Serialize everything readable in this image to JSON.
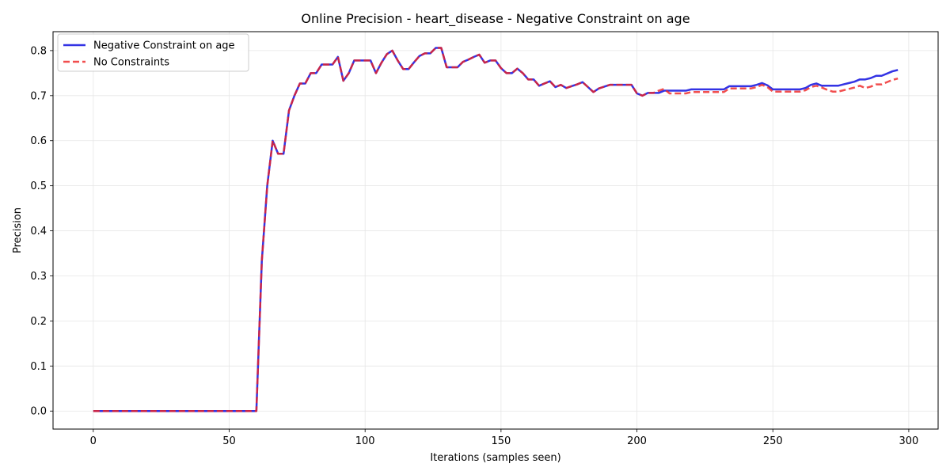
{
  "chart_data": {
    "type": "line",
    "title": "Online Precision - heart_disease - Negative Constraint on age",
    "xlabel": "Iterations (samples seen)",
    "ylabel": "Precision",
    "xlim": [
      -14.8,
      310.8
    ],
    "ylim": [
      -0.04,
      0.842
    ],
    "xticks": [
      0,
      50,
      100,
      150,
      200,
      250,
      300
    ],
    "yticks": [
      0.0,
      0.1,
      0.2,
      0.3,
      0.4,
      0.5,
      0.6,
      0.7,
      0.8
    ],
    "grid": true,
    "legend_position": "top-left",
    "series": [
      {
        "name": "Negative Constraint on age",
        "color": "#0000dd",
        "style": "solid",
        "points": [
          [
            0,
            0
          ],
          [
            60,
            0
          ],
          [
            62,
            0.333
          ],
          [
            64,
            0.5
          ],
          [
            66,
            0.6
          ],
          [
            68,
            0.571
          ],
          [
            70,
            0.571
          ],
          [
            72,
            0.667
          ],
          [
            74,
            0.7
          ],
          [
            76,
            0.727
          ],
          [
            78,
            0.727
          ],
          [
            80,
            0.75
          ],
          [
            82,
            0.75
          ],
          [
            84,
            0.769
          ],
          [
            86,
            0.769
          ],
          [
            88,
            0.769
          ],
          [
            90,
            0.786
          ],
          [
            92,
            0.733
          ],
          [
            94,
            0.75
          ],
          [
            96,
            0.778
          ],
          [
            98,
            0.778
          ],
          [
            100,
            0.778
          ],
          [
            102,
            0.778
          ],
          [
            104,
            0.75
          ],
          [
            106,
            0.773
          ],
          [
            108,
            0.792
          ],
          [
            110,
            0.8
          ],
          [
            112,
            0.778
          ],
          [
            114,
            0.759
          ],
          [
            116,
            0.759
          ],
          [
            118,
            0.774
          ],
          [
            120,
            0.788
          ],
          [
            122,
            0.794
          ],
          [
            124,
            0.794
          ],
          [
            126,
            0.806
          ],
          [
            128,
            0.806
          ],
          [
            130,
            0.763
          ],
          [
            132,
            0.763
          ],
          [
            134,
            0.763
          ],
          [
            136,
            0.775
          ],
          [
            138,
            0.78
          ],
          [
            140,
            0.786
          ],
          [
            142,
            0.791
          ],
          [
            144,
            0.773
          ],
          [
            146,
            0.778
          ],
          [
            148,
            0.778
          ],
          [
            150,
            0.761
          ],
          [
            152,
            0.75
          ],
          [
            154,
            0.75
          ],
          [
            156,
            0.76
          ],
          [
            158,
            0.75
          ],
          [
            160,
            0.736
          ],
          [
            162,
            0.736
          ],
          [
            164,
            0.722
          ],
          [
            166,
            0.727
          ],
          [
            168,
            0.732
          ],
          [
            170,
            0.719
          ],
          [
            172,
            0.724
          ],
          [
            174,
            0.717
          ],
          [
            176,
            0.721
          ],
          [
            178,
            0.725
          ],
          [
            180,
            0.73
          ],
          [
            182,
            0.719
          ],
          [
            184,
            0.708
          ],
          [
            186,
            0.716
          ],
          [
            188,
            0.72
          ],
          [
            190,
            0.724
          ],
          [
            192,
            0.724
          ],
          [
            194,
            0.724
          ],
          [
            196,
            0.724
          ],
          [
            198,
            0.724
          ],
          [
            200,
            0.705
          ],
          [
            202,
            0.7
          ],
          [
            204,
            0.706
          ],
          [
            206,
            0.706
          ],
          [
            208,
            0.706
          ],
          [
            210,
            0.711
          ],
          [
            212,
            0.711
          ],
          [
            214,
            0.711
          ],
          [
            216,
            0.711
          ],
          [
            218,
            0.711
          ],
          [
            220,
            0.714
          ],
          [
            222,
            0.714
          ],
          [
            224,
            0.714
          ],
          [
            226,
            0.714
          ],
          [
            228,
            0.714
          ],
          [
            230,
            0.714
          ],
          [
            232,
            0.714
          ],
          [
            234,
            0.721
          ],
          [
            236,
            0.721
          ],
          [
            238,
            0.721
          ],
          [
            240,
            0.721
          ],
          [
            242,
            0.721
          ],
          [
            244,
            0.724
          ],
          [
            246,
            0.728
          ],
          [
            248,
            0.723
          ],
          [
            250,
            0.714
          ],
          [
            252,
            0.714
          ],
          [
            254,
            0.714
          ],
          [
            256,
            0.714
          ],
          [
            258,
            0.714
          ],
          [
            260,
            0.714
          ],
          [
            262,
            0.717
          ],
          [
            264,
            0.724
          ],
          [
            266,
            0.727
          ],
          [
            268,
            0.722
          ],
          [
            270,
            0.722
          ],
          [
            272,
            0.722
          ],
          [
            274,
            0.722
          ],
          [
            276,
            0.725
          ],
          [
            278,
            0.728
          ],
          [
            280,
            0.731
          ],
          [
            282,
            0.736
          ],
          [
            284,
            0.736
          ],
          [
            286,
            0.739
          ],
          [
            288,
            0.744
          ],
          [
            290,
            0.744
          ],
          [
            292,
            0.749
          ],
          [
            294,
            0.754
          ],
          [
            296,
            0.757
          ]
        ]
      },
      {
        "name": "No Constraints",
        "color": "#ee2222",
        "style": "dashed",
        "points": [
          [
            0,
            0
          ],
          [
            60,
            0
          ],
          [
            62,
            0.333
          ],
          [
            64,
            0.5
          ],
          [
            66,
            0.6
          ],
          [
            68,
            0.571
          ],
          [
            70,
            0.571
          ],
          [
            72,
            0.667
          ],
          [
            74,
            0.7
          ],
          [
            76,
            0.727
          ],
          [
            78,
            0.727
          ],
          [
            80,
            0.75
          ],
          [
            82,
            0.75
          ],
          [
            84,
            0.769
          ],
          [
            86,
            0.769
          ],
          [
            88,
            0.769
          ],
          [
            90,
            0.786
          ],
          [
            92,
            0.733
          ],
          [
            94,
            0.75
          ],
          [
            96,
            0.778
          ],
          [
            98,
            0.778
          ],
          [
            100,
            0.778
          ],
          [
            102,
            0.778
          ],
          [
            104,
            0.75
          ],
          [
            106,
            0.773
          ],
          [
            108,
            0.792
          ],
          [
            110,
            0.8
          ],
          [
            112,
            0.778
          ],
          [
            114,
            0.759
          ],
          [
            116,
            0.759
          ],
          [
            118,
            0.774
          ],
          [
            120,
            0.788
          ],
          [
            122,
            0.794
          ],
          [
            124,
            0.794
          ],
          [
            126,
            0.806
          ],
          [
            128,
            0.806
          ],
          [
            130,
            0.763
          ],
          [
            132,
            0.763
          ],
          [
            134,
            0.763
          ],
          [
            136,
            0.775
          ],
          [
            138,
            0.78
          ],
          [
            140,
            0.786
          ],
          [
            142,
            0.791
          ],
          [
            144,
            0.773
          ],
          [
            146,
            0.778
          ],
          [
            148,
            0.778
          ],
          [
            150,
            0.761
          ],
          [
            152,
            0.75
          ],
          [
            154,
            0.75
          ],
          [
            156,
            0.76
          ],
          [
            158,
            0.75
          ],
          [
            160,
            0.736
          ],
          [
            162,
            0.736
          ],
          [
            164,
            0.722
          ],
          [
            166,
            0.727
          ],
          [
            168,
            0.732
          ],
          [
            170,
            0.719
          ],
          [
            172,
            0.724
          ],
          [
            174,
            0.717
          ],
          [
            176,
            0.721
          ],
          [
            178,
            0.725
          ],
          [
            180,
            0.73
          ],
          [
            182,
            0.719
          ],
          [
            184,
            0.708
          ],
          [
            186,
            0.716
          ],
          [
            188,
            0.72
          ],
          [
            190,
            0.724
          ],
          [
            192,
            0.724
          ],
          [
            194,
            0.724
          ],
          [
            196,
            0.724
          ],
          [
            198,
            0.724
          ],
          [
            200,
            0.705
          ],
          [
            202,
            0.7
          ],
          [
            204,
            0.706
          ],
          [
            206,
            0.706
          ],
          [
            208,
            0.711
          ],
          [
            210,
            0.715
          ],
          [
            212,
            0.705
          ],
          [
            214,
            0.705
          ],
          [
            216,
            0.705
          ],
          [
            218,
            0.705
          ],
          [
            220,
            0.708
          ],
          [
            222,
            0.708
          ],
          [
            224,
            0.708
          ],
          [
            226,
            0.708
          ],
          [
            228,
            0.708
          ],
          [
            230,
            0.708
          ],
          [
            232,
            0.708
          ],
          [
            234,
            0.716
          ],
          [
            236,
            0.716
          ],
          [
            238,
            0.716
          ],
          [
            240,
            0.716
          ],
          [
            242,
            0.716
          ],
          [
            244,
            0.719
          ],
          [
            246,
            0.724
          ],
          [
            248,
            0.719
          ],
          [
            250,
            0.709
          ],
          [
            252,
            0.709
          ],
          [
            254,
            0.709
          ],
          [
            256,
            0.709
          ],
          [
            258,
            0.709
          ],
          [
            260,
            0.709
          ],
          [
            262,
            0.712
          ],
          [
            264,
            0.719
          ],
          [
            266,
            0.722
          ],
          [
            268,
            0.718
          ],
          [
            270,
            0.713
          ],
          [
            272,
            0.709
          ],
          [
            274,
            0.709
          ],
          [
            276,
            0.712
          ],
          [
            278,
            0.715
          ],
          [
            280,
            0.718
          ],
          [
            282,
            0.722
          ],
          [
            284,
            0.717
          ],
          [
            286,
            0.72
          ],
          [
            288,
            0.725
          ],
          [
            290,
            0.725
          ],
          [
            292,
            0.73
          ],
          [
            294,
            0.735
          ],
          [
            296,
            0.738
          ]
        ]
      }
    ]
  }
}
